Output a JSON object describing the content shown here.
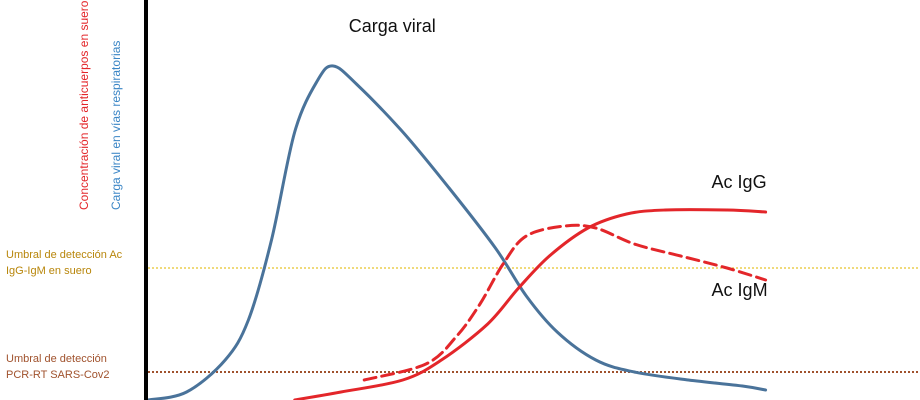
{
  "chart_data": {
    "type": "line",
    "title": "",
    "xlabel": "",
    "ylabel_lines": [
      {
        "text": "Concentración de anticuerpos en suero",
        "color": "#e3262a"
      },
      {
        "text": "Carga viral en vías respiratorias",
        "color": "#3b86c6"
      }
    ],
    "grid": false,
    "x_domain": [
      0,
      100
    ],
    "y_domain": [
      0,
      100
    ],
    "thresholds": [
      {
        "line1": "Umbral de detección Ac",
        "line2": "IgG-IgM en suero",
        "y": 33,
        "color": "#e8c42a",
        "text_color": "#b8860b"
      },
      {
        "line1": "Umbral de detección",
        "line2": "PCR-RT SARS-Cov2",
        "y": 7,
        "color": "#a0522d",
        "text_color": "#a0522d"
      }
    ],
    "series": [
      {
        "name": "Carga viral",
        "color": "#4a739a",
        "dash": false,
        "points": [
          [
            0,
            0
          ],
          [
            5,
            2
          ],
          [
            10,
            10
          ],
          [
            13,
            20
          ],
          [
            16,
            40
          ],
          [
            19,
            67
          ],
          [
            22,
            80
          ],
          [
            24,
            83.5
          ],
          [
            27,
            79
          ],
          [
            33,
            67
          ],
          [
            39,
            53
          ],
          [
            45,
            38
          ],
          [
            49,
            26
          ],
          [
            53,
            17
          ],
          [
            58,
            10
          ],
          [
            63,
            7
          ],
          [
            70,
            5
          ],
          [
            77,
            3.5
          ],
          [
            80,
            2.5
          ]
        ]
      },
      {
        "name": "Ac IgG",
        "color": "#e3262a",
        "dash": false,
        "points": [
          [
            19,
            0
          ],
          [
            25,
            2
          ],
          [
            33,
            5
          ],
          [
            38,
            10
          ],
          [
            44,
            19
          ],
          [
            48,
            28
          ],
          [
            52,
            36
          ],
          [
            57,
            43
          ],
          [
            62,
            46.5
          ],
          [
            67,
            47.5
          ],
          [
            75,
            47.5
          ],
          [
            80,
            47
          ]
        ]
      },
      {
        "name": "Ac IgM",
        "color": "#e3262a",
        "dash": true,
        "points": [
          [
            28,
            5
          ],
          [
            36,
            9
          ],
          [
            40,
            16
          ],
          [
            43,
            24
          ],
          [
            46,
            34
          ],
          [
            49,
            41
          ],
          [
            54,
            43.5
          ],
          [
            58,
            43
          ],
          [
            63,
            39
          ],
          [
            69,
            36
          ],
          [
            75,
            33
          ],
          [
            80,
            30
          ]
        ]
      }
    ],
    "annotations": [
      {
        "text": "Carga viral",
        "x": 26,
        "y": 92
      },
      {
        "text": "Ac IgG",
        "x": 73,
        "y": 53
      },
      {
        "text": "Ac IgM",
        "x": 73,
        "y": 26
      }
    ]
  }
}
